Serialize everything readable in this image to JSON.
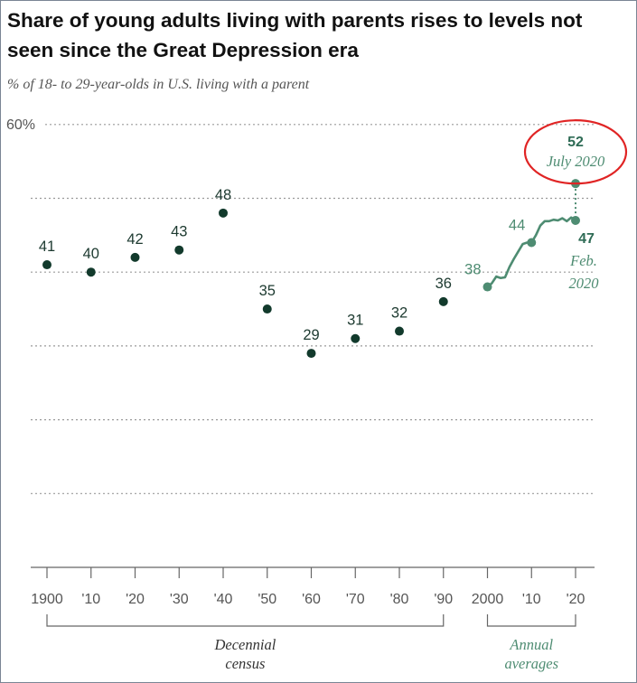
{
  "header": {
    "title": "Share of young adults living with parents rises to levels not seen since the Great Depression era",
    "subtitle": "% of 18- to 29-year-olds in U.S. living with a parent"
  },
  "colors": {
    "census_dot": "#123a2c",
    "annual_line": "#4e8c72",
    "highlight_circle": "#e02424",
    "gridline": "#9a9a9a"
  },
  "chart_data": {
    "type": "scatter",
    "title": "Share of young adults living with parents rises to levels not seen since the Great Depression era",
    "ylabel": "% of 18- to 29-year-olds in U.S. living with a parent",
    "ylim": [
      0,
      60
    ],
    "y_tick_label": "60%",
    "x_ticks": [
      "1900",
      "'10",
      "'20",
      "'30",
      "'40",
      "'50",
      "'60",
      "'70",
      "'80",
      "'90",
      "2000",
      "'10",
      "'20"
    ],
    "series": [
      {
        "name": "Decennial census",
        "points": [
          {
            "x": 1900,
            "y": 41,
            "label": "41"
          },
          {
            "x": 1910,
            "y": 40,
            "label": "40"
          },
          {
            "x": 1920,
            "y": 42,
            "label": "42"
          },
          {
            "x": 1930,
            "y": 43,
            "label": "43"
          },
          {
            "x": 1940,
            "y": 48,
            "label": "48"
          },
          {
            "x": 1950,
            "y": 35,
            "label": "35"
          },
          {
            "x": 1960,
            "y": 29,
            "label": "29"
          },
          {
            "x": 1970,
            "y": 31,
            "label": "31"
          },
          {
            "x": 1980,
            "y": 32,
            "label": "32"
          },
          {
            "x": 1990,
            "y": 36,
            "label": "36"
          }
        ]
      },
      {
        "name": "Annual averages",
        "points": [
          {
            "x": 2000,
            "y": 38,
            "label": "38"
          },
          {
            "x": 2001,
            "y": 38.5
          },
          {
            "x": 2002,
            "y": 39.4
          },
          {
            "x": 2003,
            "y": 39.2
          },
          {
            "x": 2004,
            "y": 39.3
          },
          {
            "x": 2005,
            "y": 40.7
          },
          {
            "x": 2006,
            "y": 41.8
          },
          {
            "x": 2007,
            "y": 42.8
          },
          {
            "x": 2008,
            "y": 43.8
          },
          {
            "x": 2009,
            "y": 44.0
          },
          {
            "x": 2010,
            "y": 44,
            "label": "44"
          },
          {
            "x": 2011,
            "y": 45.0
          },
          {
            "x": 2012,
            "y": 46.3
          },
          {
            "x": 2013,
            "y": 46.9
          },
          {
            "x": 2014,
            "y": 46.9
          },
          {
            "x": 2015,
            "y": 47.1
          },
          {
            "x": 2016,
            "y": 47.0
          },
          {
            "x": 2017,
            "y": 47.3
          },
          {
            "x": 2018,
            "y": 46.9
          },
          {
            "x": 2019,
            "y": 47.4
          },
          {
            "x": 2020,
            "y": 47,
            "label": "47"
          }
        ]
      }
    ],
    "annotations": {
      "feb_2020": {
        "value": 47,
        "value_label": "47",
        "line1": "Feb.",
        "line2": "2020"
      },
      "july_2020": {
        "value": 52,
        "value_label": "52",
        "line1": "July 2020"
      }
    },
    "groups": [
      {
        "line1": "Decennial",
        "line2": "census",
        "from": 1900,
        "to": 1990
      },
      {
        "line1": "Annual",
        "line2": "averages",
        "from": 2000,
        "to": 2020
      }
    ]
  }
}
